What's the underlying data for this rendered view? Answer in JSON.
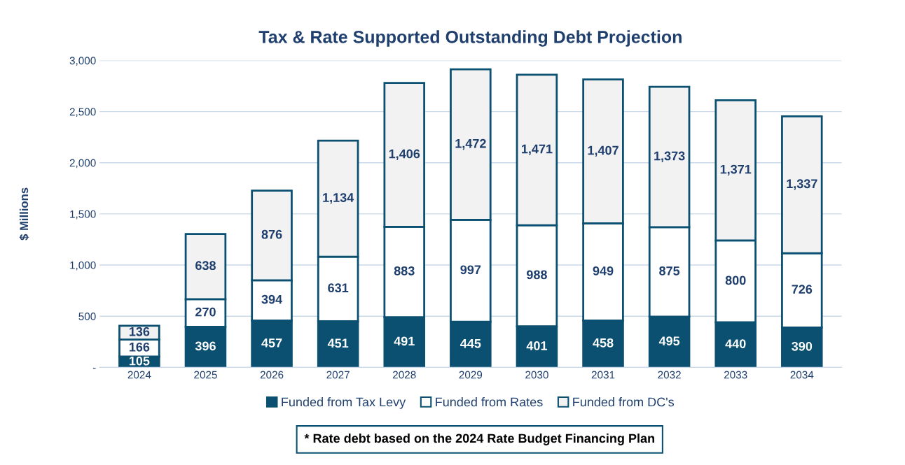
{
  "chart_data": {
    "type": "bar",
    "title": "Tax & Rate Supported Outstanding Debt Projection",
    "ylabel": "$ Millions",
    "categories": [
      "2024",
      "2025",
      "2026",
      "2027",
      "2028",
      "2029",
      "2030",
      "2031",
      "2032",
      "2033",
      "2034"
    ],
    "stacked": true,
    "series": [
      {
        "name": "Funded from Tax Levy",
        "color": "#0b4f71",
        "values": [
          105,
          396,
          457,
          451,
          491,
          445,
          401,
          458,
          495,
          440,
          390
        ],
        "value_labels": [
          "105",
          "396",
          "457",
          "451",
          "491",
          "445",
          "401",
          "458",
          "495",
          "440",
          "390"
        ]
      },
      {
        "name": "Funded from Rates",
        "color": "#ffffff",
        "values": [
          166,
          270,
          394,
          631,
          883,
          997,
          988,
          949,
          875,
          800,
          726
        ],
        "value_labels": [
          "166",
          "270",
          "394",
          "631",
          "883",
          "997",
          "988",
          "949",
          "875",
          "800",
          "726"
        ]
      },
      {
        "name": "Funded from DC's",
        "color": "#f2f2f2",
        "values": [
          136,
          638,
          876,
          1134,
          1406,
          1472,
          1471,
          1407,
          1373,
          1371,
          1337
        ],
        "value_labels": [
          "136",
          "638",
          "876",
          "1,134",
          "1,406",
          "1,472",
          "1,471",
          "1,407",
          "1,373",
          "1,371",
          "1,337"
        ]
      }
    ],
    "ylim": [
      0,
      3000
    ],
    "yticks": [
      {
        "value": 0,
        "label": "-"
      },
      500,
      {
        "value": 1000,
        "label": "1,000"
      },
      {
        "value": 1500,
        "label": "1,500"
      },
      {
        "value": 2000,
        "label": "2,000"
      },
      {
        "value": 2500,
        "label": "2,500"
      },
      {
        "value": 3000,
        "label": "3,000"
      }
    ],
    "grid": "y",
    "legend": "bottom",
    "annotations": [
      "* Rate debt based on the 2024 Rate Budget Financing Plan"
    ]
  }
}
